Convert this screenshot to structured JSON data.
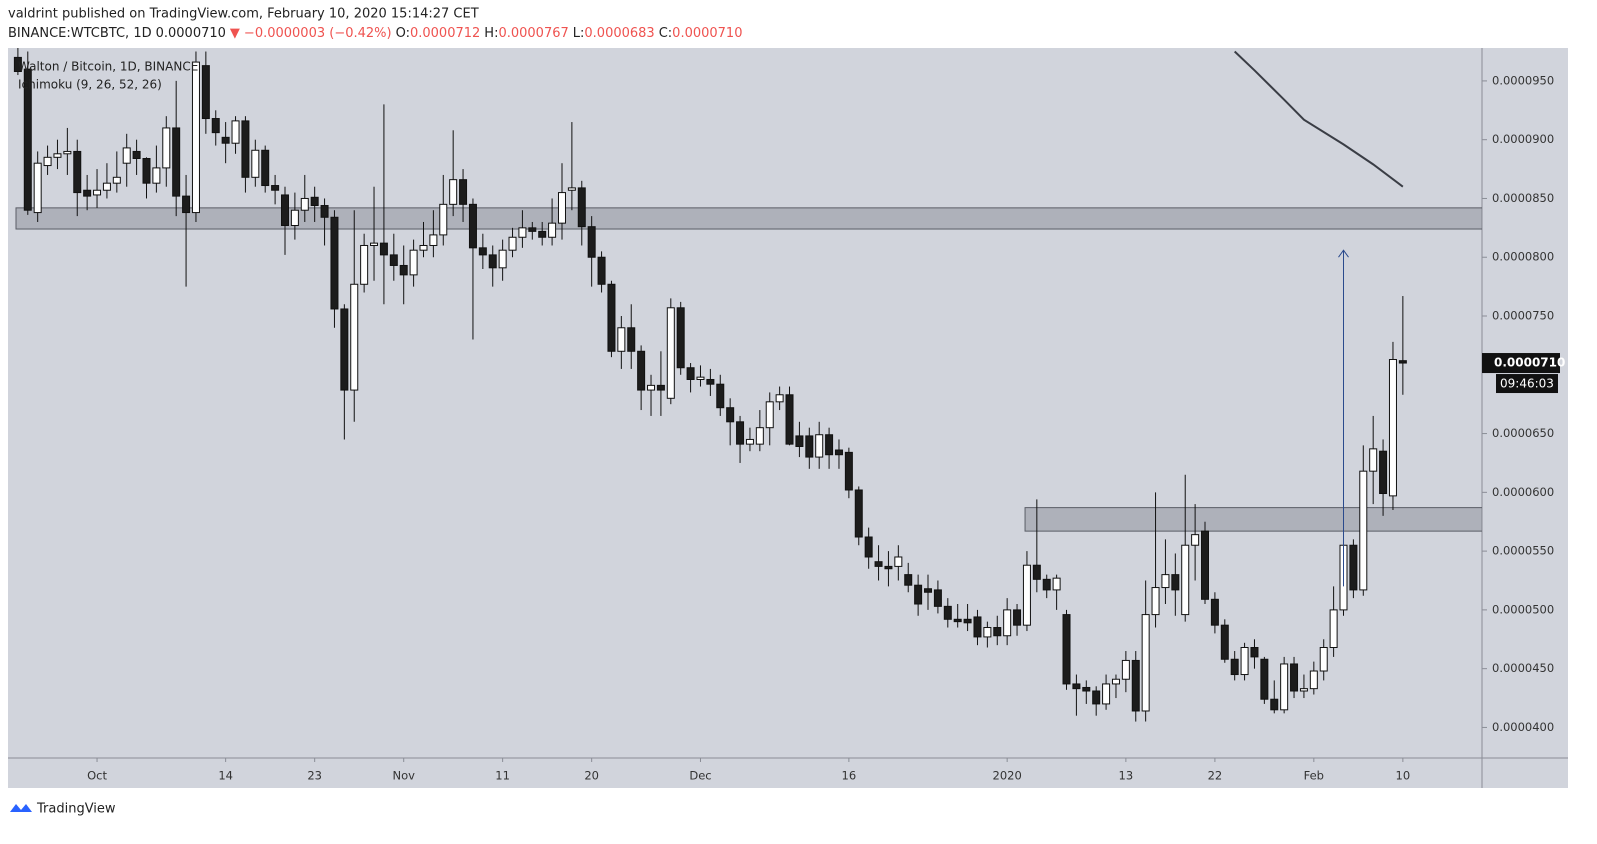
{
  "header": {
    "published": "valdrint published on TradingView.com, February 10, 2020 15:14:27 CET",
    "symbol": "BINANCE:WTCBTC, 1D",
    "last": "0.0000710",
    "arrow": "▼",
    "change": "−0.0000003 (−0.42%)",
    "ohlc": [
      {
        "label": "O:",
        "value": "0.0000712"
      },
      {
        "label": "H:",
        "value": "0.0000767"
      },
      {
        "label": "L:",
        "value": "0.0000683"
      },
      {
        "label": "C:",
        "value": "0.0000710"
      }
    ]
  },
  "legend": {
    "title": "Walton / Bitcoin, 1D, BINANCE",
    "indicator": "Ichimoku (9, 26, 52, 26)"
  },
  "countdown": "09:46:03",
  "footer": "TradingView",
  "chart_data": {
    "type": "candlestick",
    "x": [
      "2019-09-23",
      "2019-09-24",
      "2019-09-25",
      "2019-09-26",
      "2019-09-27",
      "2019-09-28",
      "2019-09-29",
      "2019-09-30",
      "2019-10-01",
      "2019-10-02",
      "2019-10-03",
      "2019-10-04",
      "2019-10-05",
      "2019-10-06",
      "2019-10-07",
      "2019-10-08",
      "2019-10-09",
      "2019-10-10",
      "2019-10-11",
      "2019-10-12",
      "2019-10-13",
      "2019-10-14",
      "2019-10-15",
      "2019-10-16",
      "2019-10-17",
      "2019-10-18",
      "2019-10-19",
      "2019-10-20",
      "2019-10-21",
      "2019-10-22",
      "2019-10-23",
      "2019-10-24",
      "2019-10-25",
      "2019-10-26",
      "2019-10-27",
      "2019-10-28",
      "2019-10-29",
      "2019-10-30",
      "2019-10-31",
      "2019-11-01",
      "2019-11-02",
      "2019-11-03",
      "2019-11-04",
      "2019-11-05",
      "2019-11-06",
      "2019-11-07",
      "2019-11-08",
      "2019-11-09",
      "2019-11-10",
      "2019-11-11",
      "2019-11-12",
      "2019-11-13",
      "2019-11-14",
      "2019-11-15",
      "2019-11-16",
      "2019-11-17",
      "2019-11-18",
      "2019-11-19",
      "2019-11-20",
      "2019-11-21",
      "2019-11-22",
      "2019-11-23",
      "2019-11-24",
      "2019-11-25",
      "2019-11-26",
      "2019-11-27",
      "2019-11-28",
      "2019-11-29",
      "2019-11-30",
      "2019-12-01",
      "2019-12-02",
      "2019-12-03",
      "2019-12-04",
      "2019-12-05",
      "2019-12-06",
      "2019-12-07",
      "2019-12-08",
      "2019-12-09",
      "2019-12-10",
      "2019-12-11",
      "2019-12-12",
      "2019-12-13",
      "2019-12-14",
      "2019-12-15",
      "2019-12-16",
      "2019-12-17",
      "2019-12-18",
      "2019-12-19",
      "2019-12-20",
      "2019-12-21",
      "2019-12-22",
      "2019-12-23",
      "2019-12-24",
      "2019-12-25",
      "2019-12-26",
      "2019-12-27",
      "2019-12-28",
      "2019-12-29",
      "2019-12-30",
      "2019-12-31",
      "2020-01-01",
      "2020-01-02",
      "2020-01-03",
      "2020-01-04",
      "2020-01-05",
      "2020-01-06",
      "2020-01-07",
      "2020-01-08",
      "2020-01-09",
      "2020-01-10",
      "2020-01-11",
      "2020-01-12",
      "2020-01-13",
      "2020-01-14",
      "2020-01-15",
      "2020-01-16",
      "2020-01-17",
      "2020-01-18",
      "2020-01-19",
      "2020-01-20",
      "2020-01-21",
      "2020-01-22",
      "2020-01-23",
      "2020-01-24",
      "2020-01-25",
      "2020-01-26",
      "2020-01-27",
      "2020-01-28",
      "2020-01-29",
      "2020-01-30",
      "2020-01-31",
      "2020-02-01",
      "2020-02-02",
      "2020-02-03",
      "2020-02-04",
      "2020-02-05",
      "2020-02-06",
      "2020-02-07",
      "2020-02-08",
      "2020-02-09",
      "2020-02-10"
    ],
    "open": [
      9.7e-05,
      9.6e-05,
      8.38e-05,
      8.78e-05,
      8.85e-05,
      8.88e-05,
      8.9e-05,
      8.57e-05,
      8.53e-05,
      8.57e-05,
      8.63e-05,
      8.8e-05,
      8.9e-05,
      8.84e-05,
      8.63e-05,
      8.76e-05,
      9.1e-05,
      8.52e-05,
      8.38e-05,
      9.63e-05,
      9.18e-05,
      9.02e-05,
      8.97e-05,
      9.16e-05,
      8.68e-05,
      8.91e-05,
      8.61e-05,
      8.53e-05,
      8.27e-05,
      8.4e-05,
      8.51e-05,
      8.44e-05,
      8.34e-05,
      7.56e-05,
      6.87e-05,
      7.77e-05,
      8.1e-05,
      8.12e-05,
      8.02e-05,
      7.93e-05,
      7.85e-05,
      8.06e-05,
      8.1e-05,
      8.19e-05,
      8.45e-05,
      8.66e-05,
      8.45e-05,
      8.08e-05,
      8.02e-05,
      7.91e-05,
      8.06e-05,
      8.17e-05,
      8.25e-05,
      8.22e-05,
      8.17e-05,
      8.29e-05,
      8.57e-05,
      8.59e-05,
      8.26e-05,
      8e-05,
      7.77e-05,
      7.2e-05,
      7.4e-05,
      7.2e-05,
      6.87e-05,
      6.91e-05,
      6.8e-05,
      7.57e-05,
      7.06e-05,
      6.96e-05,
      6.96e-05,
      6.92e-05,
      6.72e-05,
      6.6e-05,
      6.41e-05,
      6.41e-05,
      6.55e-05,
      6.77e-05,
      6.83e-05,
      6.48e-05,
      6.48e-05,
      6.3e-05,
      6.49e-05,
      6.36e-05,
      6.34e-05,
      6.02e-05,
      5.62e-05,
      5.41e-05,
      5.37e-05,
      5.37e-05,
      5.3e-05,
      5.21e-05,
      5.18e-05,
      5.17e-05,
      5.03e-05,
      4.92e-05,
      4.92e-05,
      4.94e-05,
      4.77e-05,
      4.85e-05,
      4.78e-05,
      5e-05,
      4.87e-05,
      5.38e-05,
      5.26e-05,
      5.17e-05,
      4.96e-05,
      4.37e-05,
      4.34e-05,
      4.31e-05,
      4.2e-05,
      4.37e-05,
      4.41e-05,
      4.57e-05,
      4.14e-05,
      4.96e-05,
      5.19e-05,
      5.3e-05,
      4.96e-05,
      5.55e-05,
      5.67e-05,
      5.09e-05,
      4.87e-05,
      4.58e-05,
      4.45e-05,
      4.68e-05,
      4.58e-05,
      4.24e-05,
      4.15e-05,
      4.54e-05,
      4.31e-05,
      4.33e-05,
      4.48e-05,
      4.68e-05,
      5e-05,
      5.55e-05,
      5.17e-05,
      6.18e-05,
      6.35e-05,
      5.97e-05,
      7.12e-05
    ],
    "high": [
      9.78e-05,
      9.75e-05,
      8.9e-05,
      8.95e-05,
      9e-05,
      9.1e-05,
      9e-05,
      8.7e-05,
      8.75e-05,
      8.8e-05,
      8.9e-05,
      9.05e-05,
      9e-05,
      8.85e-05,
      8.95e-05,
      9.2e-05,
      9.5e-05,
      8.7e-05,
      9.75e-05,
      9.75e-05,
      9.25e-05,
      9.15e-05,
      9.2e-05,
      9.2e-05,
      9e-05,
      8.95e-05,
      8.7e-05,
      8.6e-05,
      8.55e-05,
      8.7e-05,
      8.6e-05,
      8.5e-05,
      8.4e-05,
      7.6e-05,
      8.4e-05,
      8.2e-05,
      8.6e-05,
      9.3e-05,
      8.2e-05,
      8.1e-05,
      8.15e-05,
      8.3e-05,
      8.4e-05,
      8.7e-05,
      9.08e-05,
      8.75e-05,
      8.5e-05,
      8.2e-05,
      8.1e-05,
      8.15e-05,
      8.25e-05,
      8.4e-05,
      8.3e-05,
      8.3e-05,
      8.5e-05,
      8.8e-05,
      9.15e-05,
      8.65e-05,
      8.35e-05,
      8.05e-05,
      7.8e-05,
      7.5e-05,
      7.6e-05,
      7.25e-05,
      7e-05,
      7.2e-05,
      7.65e-05,
      7.62e-05,
      7.1e-05,
      7.08e-05,
      7.05e-05,
      7e-05,
      6.8e-05,
      6.65e-05,
      6.55e-05,
      6.7e-05,
      6.85e-05,
      6.9e-05,
      6.9e-05,
      6.6e-05,
      6.55e-05,
      6.6e-05,
      6.55e-05,
      6.45e-05,
      6.38e-05,
      6.05e-05,
      5.7e-05,
      5.55e-05,
      5.5e-05,
      5.55e-05,
      5.4e-05,
      5.3e-05,
      5.3e-05,
      5.25e-05,
      5.1e-05,
      5.05e-05,
      5.05e-05,
      5e-05,
      4.9e-05,
      4.95e-05,
      5.1e-05,
      5.05e-05,
      5.5e-05,
      5.94e-05,
      5.3e-05,
      5.3e-05,
      5e-05,
      4.45e-05,
      4.4e-05,
      4.35e-05,
      4.45e-05,
      4.45e-05,
      4.65e-05,
      4.65e-05,
      5.25e-05,
      6e-05,
      5.6e-05,
      5.48e-05,
      6.15e-05,
      5.9e-05,
      5.75e-05,
      5.15e-05,
      4.92e-05,
      4.65e-05,
      4.72e-05,
      4.75e-05,
      4.6e-05,
      4.4e-05,
      4.6e-05,
      4.6e-05,
      4.45e-05,
      4.56e-05,
      4.75e-05,
      5.2e-05,
      5.8e-05,
      5.6e-05,
      6.4e-05,
      6.65e-05,
      6.45e-05,
      7.28e-05,
      7.67e-05
    ],
    "low": [
      9.55e-05,
      8.36e-05,
      8.3e-05,
      8.7e-05,
      8.75e-05,
      8.7e-05,
      8.35e-05,
      8.4e-05,
      8.42e-05,
      8.5e-05,
      8.55e-05,
      8.6e-05,
      8.7e-05,
      8.5e-05,
      8.55e-05,
      8.6e-05,
      8.35e-05,
      7.75e-05,
      8.3e-05,
      9.05e-05,
      8.95e-05,
      8.8e-05,
      8.88e-05,
      8.55e-05,
      8.6e-05,
      8.55e-05,
      8.45e-05,
      8.02e-05,
      8.15e-05,
      8.3e-05,
      8.3e-05,
      8.1e-05,
      7.4e-05,
      6.45e-05,
      6.6e-05,
      7.7e-05,
      7.8e-05,
      7.6e-05,
      7.8e-05,
      7.6e-05,
      7.75e-05,
      8e-05,
      8e-05,
      8.1e-05,
      8.35e-05,
      8.3e-05,
      7.3e-05,
      7.9e-05,
      7.75e-05,
      7.8e-05,
      8e-05,
      8.08e-05,
      8.15e-05,
      8.1e-05,
      8.1e-05,
      8.15e-05,
      8.4e-05,
      8.1e-05,
      7.75e-05,
      7.7e-05,
      7.15e-05,
      7.05e-05,
      7.05e-05,
      6.7e-05,
      6.65e-05,
      6.65e-05,
      6.75e-05,
      7e-05,
      6.85e-05,
      6.9e-05,
      6.82e-05,
      6.65e-05,
      6.4e-05,
      6.25e-05,
      6.35e-05,
      6.35e-05,
      6.4e-05,
      6.7e-05,
      6.4e-05,
      6.3e-05,
      6.2e-05,
      6.2e-05,
      6.2e-05,
      6.2e-05,
      5.95e-05,
      5.55e-05,
      5.35e-05,
      5.25e-05,
      5.2e-05,
      5.25e-05,
      5.15e-05,
      4.95e-05,
      5e-05,
      4.97e-05,
      4.85e-05,
      4.85e-05,
      4.82e-05,
      4.7e-05,
      4.68e-05,
      4.7e-05,
      4.7e-05,
      4.78e-05,
      4.82e-05,
      5.15e-05,
      5.1e-05,
      5e-05,
      4.32e-05,
      4.1e-05,
      4.2e-05,
      4.1e-05,
      4.15e-05,
      4.25e-05,
      4.3e-05,
      4.05e-05,
      4.05e-05,
      4.85e-05,
      5.05e-05,
      4.95e-05,
      4.9e-05,
      5.25e-05,
      5.05e-05,
      4.8e-05,
      4.55e-05,
      4.4e-05,
      4.4e-05,
      4.5e-05,
      4.2e-05,
      4.12e-05,
      4.12e-05,
      4.25e-05,
      4.25e-05,
      4.28e-05,
      4.4e-05,
      4.6e-05,
      4.95e-05,
      5.1e-05,
      5.12e-05,
      5.9e-05,
      5.8e-05,
      5.85e-05,
      6.83e-05
    ],
    "close": [
      9.58e-05,
      8.4e-05,
      8.8e-05,
      8.85e-05,
      8.88e-05,
      8.9e-05,
      8.55e-05,
      8.52e-05,
      8.57e-05,
      8.63e-05,
      8.68e-05,
      8.93e-05,
      8.84e-05,
      8.63e-05,
      8.76e-05,
      9.1e-05,
      8.52e-05,
      8.38e-05,
      9.66e-05,
      9.18e-05,
      9.06e-05,
      8.97e-05,
      9.16e-05,
      8.68e-05,
      8.91e-05,
      8.61e-05,
      8.57e-05,
      8.27e-05,
      8.4e-05,
      8.5e-05,
      8.44e-05,
      8.34e-05,
      7.56e-05,
      6.87e-05,
      7.77e-05,
      8.1e-05,
      8.12e-05,
      8.02e-05,
      7.93e-05,
      7.85e-05,
      8.06e-05,
      8.1e-05,
      8.19e-05,
      8.45e-05,
      8.66e-05,
      8.45e-05,
      8.08e-05,
      8.02e-05,
      7.91e-05,
      8.06e-05,
      8.17e-05,
      8.25e-05,
      8.22e-05,
      8.17e-05,
      8.29e-05,
      8.55e-05,
      8.59e-05,
      8.26e-05,
      8e-05,
      7.77e-05,
      7.2e-05,
      7.4e-05,
      7.2e-05,
      6.87e-05,
      6.91e-05,
      6.87e-05,
      7.57e-05,
      7.06e-05,
      6.96e-05,
      6.98e-05,
      6.92e-05,
      6.72e-05,
      6.6e-05,
      6.41e-05,
      6.45e-05,
      6.55e-05,
      6.77e-05,
      6.83e-05,
      6.41e-05,
      6.39e-05,
      6.3e-05,
      6.49e-05,
      6.32e-05,
      6.32e-05,
      6.02e-05,
      5.62e-05,
      5.45e-05,
      5.37e-05,
      5.35e-05,
      5.45e-05,
      5.21e-05,
      5.05e-05,
      5.15e-05,
      5.03e-05,
      4.92e-05,
      4.9e-05,
      4.89e-05,
      4.77e-05,
      4.85e-05,
      4.78e-05,
      5e-05,
      4.87e-05,
      5.38e-05,
      5.26e-05,
      5.17e-05,
      5.27e-05,
      4.37e-05,
      4.33e-05,
      4.31e-05,
      4.2e-05,
      4.37e-05,
      4.41e-05,
      4.57e-05,
      4.14e-05,
      4.96e-05,
      5.19e-05,
      5.3e-05,
      5.17e-05,
      5.55e-05,
      5.64e-05,
      5.09e-05,
      4.87e-05,
      4.58e-05,
      4.45e-05,
      4.68e-05,
      4.6e-05,
      4.24e-05,
      4.15e-05,
      4.54e-05,
      4.31e-05,
      4.33e-05,
      4.48e-05,
      4.68e-05,
      5e-05,
      5.55e-05,
      5.17e-05,
      6.18e-05,
      6.37e-05,
      5.99e-05,
      7.13e-05,
      7.1e-05
    ],
    "xlim": [
      "2019-09-22",
      "2020-02-18"
    ],
    "ylim": [
      3.74e-05,
      9.78e-05
    ],
    "yticks": [
      {
        "value": 4e-05,
        "label": "0.0000400"
      },
      {
        "value": 4.5e-05,
        "label": "0.0000450"
      },
      {
        "value": 5e-05,
        "label": "0.0000500"
      },
      {
        "value": 5.5e-05,
        "label": "0.0000550"
      },
      {
        "value": 6e-05,
        "label": "0.0000600"
      },
      {
        "value": 6.5e-05,
        "label": "0.0000650"
      },
      {
        "value": 7.5e-05,
        "label": "0.0000750"
      },
      {
        "value": 8e-05,
        "label": "0.0000800"
      },
      {
        "value": 8.5e-05,
        "label": "0.0000850"
      },
      {
        "value": 9e-05,
        "label": "0.0000900"
      },
      {
        "value": 9.5e-05,
        "label": "0.0000950"
      }
    ],
    "xticks": [
      {
        "value": "2019-10-01",
        "label": "Oct"
      },
      {
        "value": "2019-10-14",
        "label": "14"
      },
      {
        "value": "2019-10-23",
        "label": "23"
      },
      {
        "value": "2019-11-01",
        "label": "Nov"
      },
      {
        "value": "2019-11-11",
        "label": "11"
      },
      {
        "value": "2019-11-20",
        "label": "20"
      },
      {
        "value": "2019-12-01",
        "label": "Dec"
      },
      {
        "value": "2019-12-16",
        "label": "16"
      },
      {
        "value": "2020-01-01",
        "label": "2020"
      },
      {
        "value": "2020-01-13",
        "label": "13"
      },
      {
        "value": "2020-01-22",
        "label": "22"
      },
      {
        "value": "2020-02-01",
        "label": "Feb"
      },
      {
        "value": "2020-02-10",
        "label": "10"
      }
    ],
    "up_color": "#ffffff",
    "down_color": "#1c1c1c",
    "zones": [
      {
        "x": "2019-09-22",
        "ylim": [
          8.24e-05,
          8.42e-05
        ]
      },
      {
        "x": "2020-01-02",
        "ylim": [
          5.67e-05,
          5.87e-05
        ]
      }
    ],
    "line": {
      "color": "#3a3d45",
      "x": [
        "2020-01-24",
        "2020-01-26",
        "2020-01-29",
        "2020-01-31",
        "2020-02-04",
        "2020-02-07",
        "2020-02-10"
      ],
      "values": [
        9.75e-05,
        9.59e-05,
        9.34e-05,
        9.17e-05,
        8.96e-05,
        8.79e-05,
        8.6e-05
      ]
    },
    "arrow": {
      "x": "2020-02-04",
      "values": [
        5.2e-05,
        8.06e-05
      ],
      "color": "#2a4a8c"
    }
  }
}
